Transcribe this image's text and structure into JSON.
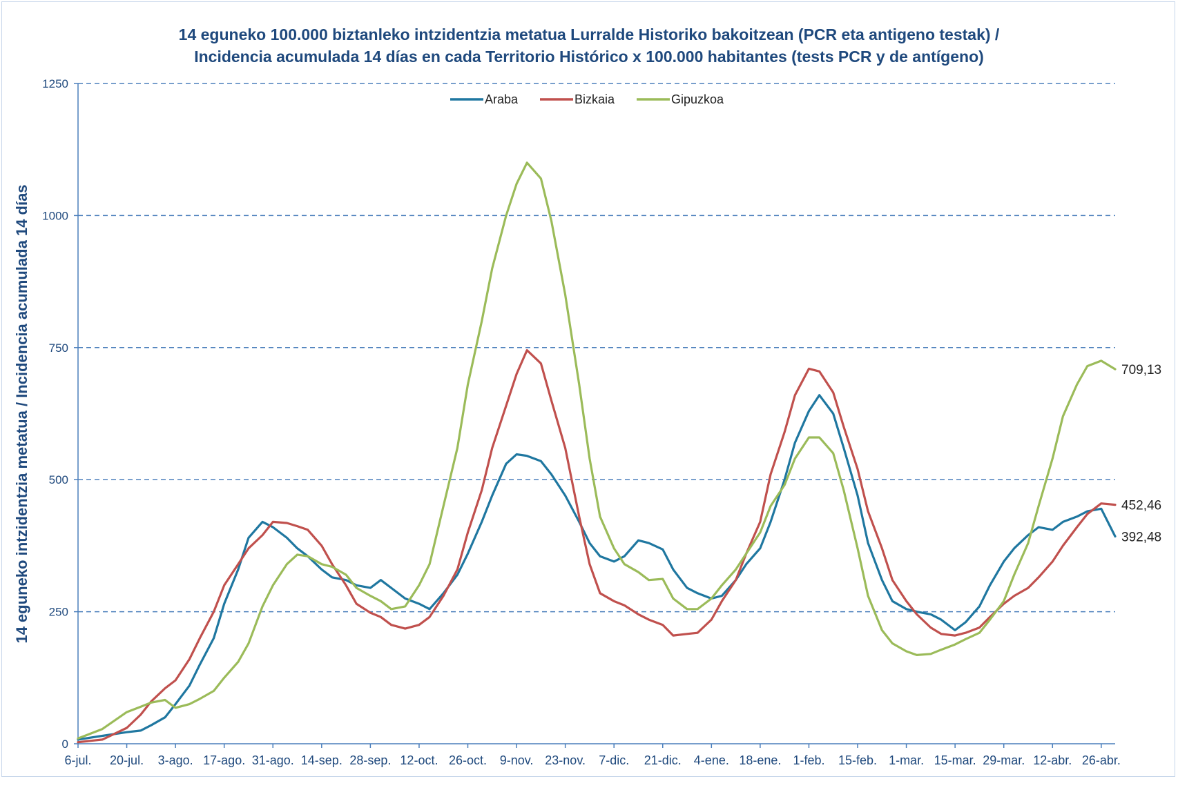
{
  "chart_data": {
    "type": "line",
    "title": "14 eguneko 100.000 biztanleko intzidentzia metatua Lurralde Historiko bakoitzean (PCR eta antigeno  testak) /",
    "subtitle": "Incidencia  acumulada  14 días en cada Territorio Histórico x 100.000 habitantes (tests PCR y de antígeno)",
    "ylabel": "14 eguneko intzidentzia metatua / Incidencia acumulada  14 días",
    "xlabel": "",
    "ylim": [
      0,
      1250
    ],
    "yticks": [
      0,
      250,
      500,
      750,
      1000,
      1250
    ],
    "grid": "horizontal dashed",
    "legend_position": "top",
    "x_tick_labels": [
      "6-jul.",
      "20-jul.",
      "3-ago.",
      "17-ago.",
      "31-ago.",
      "14-sep.",
      "28-sep.",
      "12-oct.",
      "26-oct.",
      "9-nov.",
      "23-nov.",
      "7-dic.",
      "21-dic.",
      "4-ene.",
      "18-ene.",
      "1-feb.",
      "15-feb.",
      "1-mar.",
      "15-mar.",
      "29-mar.",
      "12-abr.",
      "26-abr."
    ],
    "x_range": [
      "6-jul.",
      "30-abr."
    ],
    "series": [
      {
        "name": "Araba",
        "color": "#1f77a0",
        "end_label": "392,48",
        "points": [
          [
            "6-jul.",
            8
          ],
          [
            "13-jul.",
            15
          ],
          [
            "20-jul.",
            22
          ],
          [
            "24-jul.",
            25
          ],
          [
            "27-jul.",
            35
          ],
          [
            "31-jul.",
            50
          ],
          [
            "3-ago.",
            75
          ],
          [
            "7-ago.",
            110
          ],
          [
            "10-ago.",
            150
          ],
          [
            "14-ago.",
            200
          ],
          [
            "17-ago.",
            265
          ],
          [
            "21-ago.",
            330
          ],
          [
            "24-ago.",
            390
          ],
          [
            "28-ago.",
            420
          ],
          [
            "31-ago.",
            410
          ],
          [
            "4-sep.",
            390
          ],
          [
            "7-sep.",
            370
          ],
          [
            "10-sep.",
            355
          ],
          [
            "14-sep.",
            330
          ],
          [
            "17-sep.",
            315
          ],
          [
            "21-sep.",
            310
          ],
          [
            "24-sep.",
            300
          ],
          [
            "28-sep.",
            295
          ],
          [
            "1-oct.",
            310
          ],
          [
            "4-oct.",
            295
          ],
          [
            "8-oct.",
            275
          ],
          [
            "12-oct.",
            265
          ],
          [
            "15-oct.",
            255
          ],
          [
            "19-oct.",
            285
          ],
          [
            "23-oct.",
            320
          ],
          [
            "26-oct.",
            360
          ],
          [
            "30-oct.",
            420
          ],
          [
            "2-nov.",
            470
          ],
          [
            "6-nov.",
            530
          ],
          [
            "9-nov.",
            548
          ],
          [
            "12-nov.",
            545
          ],
          [
            "16-nov.",
            535
          ],
          [
            "19-nov.",
            510
          ],
          [
            "23-nov.",
            470
          ],
          [
            "27-nov.",
            420
          ],
          [
            "30-nov.",
            380
          ],
          [
            "3-dic.",
            355
          ],
          [
            "7-dic.",
            345
          ],
          [
            "10-dic.",
            355
          ],
          [
            "14-dic.",
            385
          ],
          [
            "17-dic.",
            380
          ],
          [
            "21-dic.",
            368
          ],
          [
            "24-dic.",
            330
          ],
          [
            "28-dic.",
            295
          ],
          [
            "31-dic.",
            285
          ],
          [
            "4-ene.",
            275
          ],
          [
            "7-ene.",
            280
          ],
          [
            "11-ene.",
            310
          ],
          [
            "14-ene.",
            340
          ],
          [
            "18-ene.",
            370
          ],
          [
            "21-ene.",
            420
          ],
          [
            "25-ene.",
            500
          ],
          [
            "28-ene.",
            570
          ],
          [
            "1-feb.",
            630
          ],
          [
            "4-feb.",
            660
          ],
          [
            "8-feb.",
            625
          ],
          [
            "11-feb.",
            560
          ],
          [
            "15-feb.",
            470
          ],
          [
            "18-feb.",
            380
          ],
          [
            "22-feb.",
            310
          ],
          [
            "25-feb.",
            270
          ],
          [
            "1-mar.",
            255
          ],
          [
            "4-mar.",
            250
          ],
          [
            "8-mar.",
            245
          ],
          [
            "11-mar.",
            235
          ],
          [
            "15-mar.",
            215
          ],
          [
            "18-mar.",
            230
          ],
          [
            "22-mar.",
            260
          ],
          [
            "25-mar.",
            300
          ],
          [
            "29-mar.",
            345
          ],
          [
            "1-abr.",
            370
          ],
          [
            "5-abr.",
            395
          ],
          [
            "8-abr.",
            410
          ],
          [
            "12-abr.",
            405
          ],
          [
            "15-abr.",
            420
          ],
          [
            "19-abr.",
            430
          ],
          [
            "22-abr.",
            440
          ],
          [
            "26-abr.",
            445
          ],
          [
            "30-abr.",
            392.48
          ]
        ]
      },
      {
        "name": "Bizkaia",
        "color": "#c0504d",
        "end_label": "452,46",
        "points": [
          [
            "6-jul.",
            3
          ],
          [
            "13-jul.",
            8
          ],
          [
            "20-jul.",
            30
          ],
          [
            "24-jul.",
            55
          ],
          [
            "27-jul.",
            80
          ],
          [
            "31-jul.",
            105
          ],
          [
            "3-ago.",
            120
          ],
          [
            "7-ago.",
            160
          ],
          [
            "10-ago.",
            200
          ],
          [
            "14-ago.",
            250
          ],
          [
            "17-ago.",
            300
          ],
          [
            "21-ago.",
            340
          ],
          [
            "24-ago.",
            370
          ],
          [
            "28-ago.",
            395
          ],
          [
            "31-ago.",
            420
          ],
          [
            "4-sep.",
            418
          ],
          [
            "7-sep.",
            412
          ],
          [
            "10-sep.",
            405
          ],
          [
            "14-sep.",
            375
          ],
          [
            "17-sep.",
            340
          ],
          [
            "21-sep.",
            300
          ],
          [
            "24-sep.",
            265
          ],
          [
            "28-sep.",
            248
          ],
          [
            "1-oct.",
            240
          ],
          [
            "4-oct.",
            225
          ],
          [
            "8-oct.",
            218
          ],
          [
            "12-oct.",
            225
          ],
          [
            "15-oct.",
            240
          ],
          [
            "19-oct.",
            280
          ],
          [
            "23-oct.",
            330
          ],
          [
            "26-oct.",
            400
          ],
          [
            "30-oct.",
            480
          ],
          [
            "2-nov.",
            560
          ],
          [
            "6-nov.",
            640
          ],
          [
            "9-nov.",
            700
          ],
          [
            "12-nov.",
            745
          ],
          [
            "16-nov.",
            720
          ],
          [
            "19-nov.",
            650
          ],
          [
            "23-nov.",
            560
          ],
          [
            "27-nov.",
            430
          ],
          [
            "30-nov.",
            340
          ],
          [
            "3-dic.",
            285
          ],
          [
            "7-dic.",
            270
          ],
          [
            "10-dic.",
            262
          ],
          [
            "14-dic.",
            245
          ],
          [
            "17-dic.",
            235
          ],
          [
            "21-dic.",
            225
          ],
          [
            "24-dic.",
            205
          ],
          [
            "28-dic.",
            208
          ],
          [
            "31-dic.",
            210
          ],
          [
            "4-ene.",
            235
          ],
          [
            "7-ene.",
            270
          ],
          [
            "11-ene.",
            310
          ],
          [
            "14-ene.",
            360
          ],
          [
            "18-ene.",
            420
          ],
          [
            "21-ene.",
            510
          ],
          [
            "25-ene.",
            590
          ],
          [
            "28-ene.",
            660
          ],
          [
            "1-feb.",
            710
          ],
          [
            "4-feb.",
            705
          ],
          [
            "8-feb.",
            665
          ],
          [
            "11-feb.",
            600
          ],
          [
            "15-feb.",
            520
          ],
          [
            "18-feb.",
            440
          ],
          [
            "22-feb.",
            370
          ],
          [
            "25-feb.",
            310
          ],
          [
            "1-mar.",
            270
          ],
          [
            "4-mar.",
            245
          ],
          [
            "8-mar.",
            220
          ],
          [
            "11-mar.",
            208
          ],
          [
            "15-mar.",
            205
          ],
          [
            "18-mar.",
            210
          ],
          [
            "22-mar.",
            220
          ],
          [
            "25-mar.",
            240
          ],
          [
            "29-mar.",
            265
          ],
          [
            "1-abr.",
            280
          ],
          [
            "5-abr.",
            295
          ],
          [
            "8-abr.",
            315
          ],
          [
            "12-abr.",
            345
          ],
          [
            "15-abr.",
            375
          ],
          [
            "19-abr.",
            410
          ],
          [
            "22-abr.",
            435
          ],
          [
            "26-abr.",
            455
          ],
          [
            "30-abr.",
            452.46
          ]
        ]
      },
      {
        "name": "Gipuzkoa",
        "color": "#9bbb59",
        "end_label": "709,13",
        "points": [
          [
            "6-jul.",
            10
          ],
          [
            "13-jul.",
            28
          ],
          [
            "20-jul.",
            60
          ],
          [
            "24-jul.",
            70
          ],
          [
            "27-jul.",
            78
          ],
          [
            "31-jul.",
            83
          ],
          [
            "3-ago.",
            68
          ],
          [
            "7-ago.",
            75
          ],
          [
            "10-ago.",
            85
          ],
          [
            "14-ago.",
            100
          ],
          [
            "17-ago.",
            125
          ],
          [
            "21-ago.",
            155
          ],
          [
            "24-ago.",
            190
          ],
          [
            "28-ago.",
            260
          ],
          [
            "31-ago.",
            300
          ],
          [
            "4-sep.",
            340
          ],
          [
            "7-sep.",
            358
          ],
          [
            "10-sep.",
            355
          ],
          [
            "14-sep.",
            340
          ],
          [
            "17-sep.",
            335
          ],
          [
            "21-sep.",
            320
          ],
          [
            "24-sep.",
            295
          ],
          [
            "28-sep.",
            280
          ],
          [
            "1-oct.",
            270
          ],
          [
            "4-oct.",
            255
          ],
          [
            "8-oct.",
            260
          ],
          [
            "12-oct.",
            300
          ],
          [
            "15-oct.",
            340
          ],
          [
            "19-oct.",
            450
          ],
          [
            "23-oct.",
            560
          ],
          [
            "26-oct.",
            680
          ],
          [
            "30-oct.",
            800
          ],
          [
            "2-nov.",
            900
          ],
          [
            "6-nov.",
            1000
          ],
          [
            "9-nov.",
            1060
          ],
          [
            "12-nov.",
            1100
          ],
          [
            "16-nov.",
            1070
          ],
          [
            "19-nov.",
            990
          ],
          [
            "23-nov.",
            850
          ],
          [
            "27-nov.",
            680
          ],
          [
            "30-nov.",
            540
          ],
          [
            "3-dic.",
            430
          ],
          [
            "7-dic.",
            370
          ],
          [
            "10-dic.",
            340
          ],
          [
            "14-dic.",
            325
          ],
          [
            "17-dic.",
            310
          ],
          [
            "21-dic.",
            312
          ],
          [
            "24-dic.",
            275
          ],
          [
            "28-dic.",
            255
          ],
          [
            "31-dic.",
            255
          ],
          [
            "4-ene.",
            275
          ],
          [
            "7-ene.",
            300
          ],
          [
            "11-ene.",
            330
          ],
          [
            "14-ene.",
            360
          ],
          [
            "18-ene.",
            400
          ],
          [
            "21-ene.",
            450
          ],
          [
            "25-ene.",
            490
          ],
          [
            "28-ene.",
            540
          ],
          [
            "1-feb.",
            580
          ],
          [
            "4-feb.",
            580
          ],
          [
            "8-feb.",
            550
          ],
          [
            "11-feb.",
            480
          ],
          [
            "15-feb.",
            370
          ],
          [
            "18-feb.",
            280
          ],
          [
            "22-feb.",
            215
          ],
          [
            "25-feb.",
            190
          ],
          [
            "1-mar.",
            175
          ],
          [
            "4-mar.",
            168
          ],
          [
            "8-mar.",
            170
          ],
          [
            "11-mar.",
            178
          ],
          [
            "15-mar.",
            188
          ],
          [
            "18-mar.",
            198
          ],
          [
            "22-mar.",
            210
          ],
          [
            "25-mar.",
            235
          ],
          [
            "29-mar.",
            270
          ],
          [
            "1-abr.",
            320
          ],
          [
            "5-abr.",
            380
          ],
          [
            "8-abr.",
            450
          ],
          [
            "12-abr.",
            540
          ],
          [
            "15-abr.",
            620
          ],
          [
            "19-abr.",
            680
          ],
          [
            "22-abr.",
            715
          ],
          [
            "26-abr.",
            725
          ],
          [
            "30-abr.",
            709.13
          ]
        ]
      }
    ]
  }
}
